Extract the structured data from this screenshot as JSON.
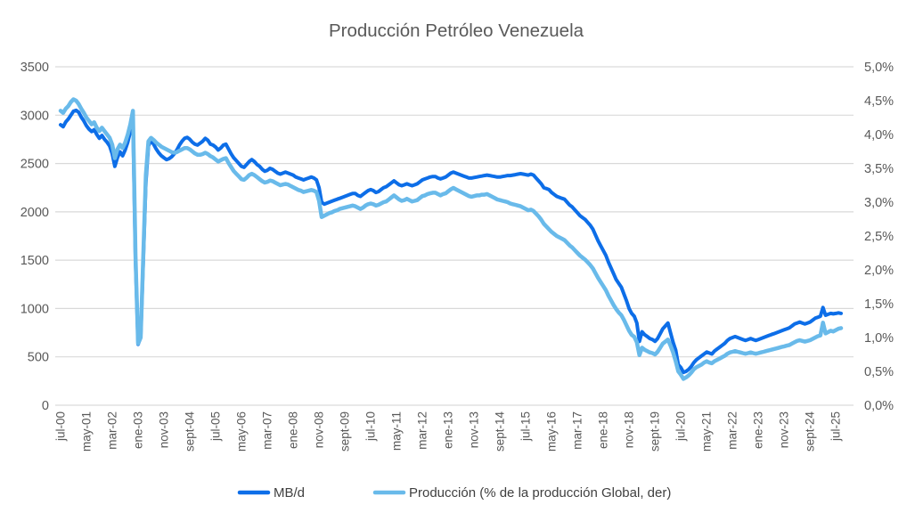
{
  "title": "Producción Petróleo Venezuela",
  "colors": {
    "series_dark_blue": "#0D6EE8",
    "series_light_blue": "#69BAEA",
    "grid": "#D9D9D9",
    "axis_text": "#595959",
    "title_text": "#595959",
    "legend_text": "#404040",
    "background": "#FFFFFF"
  },
  "chart_data": {
    "type": "line",
    "title": "Producción Petróleo Venezuela",
    "frequency": "monthly",
    "x_start": "jul-00",
    "x_end": "sept-25",
    "x_tick_every": 10,
    "x_tick_labels": [
      "jul-00",
      "may-01",
      "mar-02",
      "ene-03",
      "nov-03",
      "sept-04",
      "jul-05",
      "may-06",
      "mar-07",
      "ene-08",
      "nov-08",
      "sept-09",
      "jul-10",
      "may-11",
      "mar-12",
      "ene-13",
      "nov-13",
      "sept-14",
      "jul-15",
      "may-16",
      "mar-17",
      "ene-18",
      "nov-18",
      "sept-19",
      "jul-20",
      "may-21",
      "mar-22",
      "ene-23",
      "nov-23",
      "sept-24",
      "jul-25"
    ],
    "left_axis": {
      "min": 0,
      "max": 3500,
      "step": 500,
      "tick_labels": [
        "0",
        "500",
        "1000",
        "1500",
        "2000",
        "2500",
        "3000",
        "3500"
      ]
    },
    "right_axis": {
      "min": 0,
      "max": 5,
      "step": 0.5,
      "tick_labels": [
        "0,0%",
        "0,5%",
        "1,0%",
        "1,5%",
        "2,0%",
        "2,5%",
        "3,0%",
        "3,5%",
        "4,0%",
        "4,5%",
        "5,0%"
      ]
    },
    "grid": "horizontal",
    "legend_position": "bottom",
    "series": [
      {
        "name": "MB/d",
        "axis": "left",
        "color": "#0D6EE8",
        "values": [
          2900,
          2880,
          2930,
          2960,
          3000,
          3040,
          3050,
          3030,
          2980,
          2940,
          2890,
          2855,
          2830,
          2850,
          2800,
          2760,
          2790,
          2750,
          2720,
          2680,
          2600,
          2470,
          2560,
          2620,
          2580,
          2640,
          2720,
          2830,
          2950,
          1500,
          630,
          700,
          1500,
          2300,
          2680,
          2740,
          2700,
          2650,
          2610,
          2580,
          2560,
          2540,
          2550,
          2570,
          2600,
          2640,
          2690,
          2730,
          2760,
          2770,
          2750,
          2720,
          2700,
          2690,
          2710,
          2730,
          2760,
          2740,
          2700,
          2690,
          2670,
          2640,
          2660,
          2690,
          2700,
          2650,
          2600,
          2560,
          2530,
          2500,
          2470,
          2460,
          2490,
          2520,
          2540,
          2520,
          2490,
          2470,
          2440,
          2420,
          2430,
          2450,
          2440,
          2420,
          2400,
          2390,
          2400,
          2410,
          2400,
          2390,
          2380,
          2360,
          2350,
          2340,
          2330,
          2340,
          2350,
          2360,
          2350,
          2330,
          2250,
          2100,
          2080,
          2090,
          2100,
          2110,
          2120,
          2130,
          2140,
          2150,
          2160,
          2170,
          2180,
          2190,
          2190,
          2170,
          2160,
          2180,
          2200,
          2220,
          2230,
          2220,
          2200,
          2210,
          2230,
          2250,
          2260,
          2280,
          2300,
          2320,
          2300,
          2280,
          2270,
          2280,
          2290,
          2280,
          2270,
          2280,
          2290,
          2310,
          2330,
          2340,
          2350,
          2360,
          2365,
          2365,
          2350,
          2340,
          2350,
          2360,
          2380,
          2400,
          2410,
          2400,
          2390,
          2380,
          2370,
          2360,
          2350,
          2350,
          2355,
          2360,
          2365,
          2370,
          2375,
          2380,
          2375,
          2370,
          2365,
          2360,
          2360,
          2365,
          2370,
          2375,
          2375,
          2380,
          2385,
          2390,
          2395,
          2390,
          2385,
          2380,
          2390,
          2380,
          2350,
          2320,
          2290,
          2250,
          2240,
          2230,
          2200,
          2180,
          2160,
          2150,
          2140,
          2130,
          2100,
          2070,
          2050,
          2020,
          1990,
          1960,
          1940,
          1920,
          1890,
          1860,
          1820,
          1760,
          1700,
          1650,
          1600,
          1550,
          1480,
          1420,
          1360,
          1300,
          1260,
          1220,
          1150,
          1080,
          1000,
          950,
          920,
          850,
          660,
          760,
          730,
          710,
          690,
          680,
          660,
          690,
          740,
          790,
          820,
          850,
          750,
          650,
          570,
          420,
          390,
          340,
          350,
          370,
          400,
          440,
          470,
          490,
          510,
          530,
          550,
          540,
          530,
          560,
          580,
          600,
          620,
          640,
          670,
          690,
          700,
          710,
          700,
          690,
          680,
          670,
          680,
          690,
          680,
          670,
          680,
          690,
          700,
          710,
          720,
          730,
          740,
          750,
          760,
          770,
          780,
          790,
          800,
          820,
          840,
          850,
          860,
          850,
          840,
          850,
          860,
          880,
          900,
          910,
          920,
          1010,
          930,
          940,
          950,
          945,
          950,
          955,
          950
        ]
      },
      {
        "name": "Producción (% de la producción Global, der)",
        "axis": "right",
        "color": "#69BAEA",
        "values": [
          4.35,
          4.32,
          4.38,
          4.42,
          4.48,
          4.52,
          4.5,
          4.45,
          4.38,
          4.32,
          4.25,
          4.2,
          4.15,
          4.18,
          4.1,
          4.05,
          4.1,
          4.05,
          4.0,
          3.95,
          3.85,
          3.65,
          3.78,
          3.85,
          3.8,
          3.88,
          4.0,
          4.15,
          4.35,
          2.2,
          0.91,
          1.0,
          2.2,
          3.4,
          3.9,
          3.95,
          3.92,
          3.88,
          3.85,
          3.82,
          3.8,
          3.78,
          3.76,
          3.74,
          3.73,
          3.74,
          3.76,
          3.78,
          3.8,
          3.8,
          3.78,
          3.75,
          3.72,
          3.7,
          3.7,
          3.71,
          3.73,
          3.71,
          3.68,
          3.66,
          3.63,
          3.6,
          3.62,
          3.64,
          3.65,
          3.58,
          3.52,
          3.46,
          3.42,
          3.38,
          3.34,
          3.33,
          3.36,
          3.4,
          3.42,
          3.4,
          3.37,
          3.34,
          3.31,
          3.29,
          3.3,
          3.32,
          3.31,
          3.29,
          3.27,
          3.25,
          3.26,
          3.27,
          3.26,
          3.24,
          3.22,
          3.2,
          3.18,
          3.17,
          3.15,
          3.16,
          3.17,
          3.18,
          3.17,
          3.15,
          3.02,
          2.78,
          2.8,
          2.82,
          2.84,
          2.85,
          2.87,
          2.88,
          2.9,
          2.91,
          2.92,
          2.93,
          2.94,
          2.95,
          2.94,
          2.92,
          2.9,
          2.92,
          2.95,
          2.97,
          2.98,
          2.97,
          2.95,
          2.96,
          2.98,
          3.0,
          3.01,
          3.04,
          3.07,
          3.1,
          3.07,
          3.04,
          3.02,
          3.03,
          3.05,
          3.03,
          3.01,
          3.02,
          3.03,
          3.06,
          3.09,
          3.1,
          3.12,
          3.13,
          3.14,
          3.14,
          3.12,
          3.1,
          3.12,
          3.13,
          3.16,
          3.19,
          3.21,
          3.19,
          3.17,
          3.15,
          3.13,
          3.11,
          3.09,
          3.08,
          3.09,
          3.1,
          3.1,
          3.11,
          3.11,
          3.12,
          3.1,
          3.08,
          3.06,
          3.04,
          3.03,
          3.02,
          3.01,
          3.0,
          2.98,
          2.97,
          2.96,
          2.95,
          2.94,
          2.92,
          2.9,
          2.88,
          2.89,
          2.87,
          2.83,
          2.79,
          2.74,
          2.68,
          2.64,
          2.6,
          2.56,
          2.53,
          2.5,
          2.48,
          2.46,
          2.44,
          2.4,
          2.36,
          2.33,
          2.29,
          2.25,
          2.21,
          2.18,
          2.15,
          2.11,
          2.07,
          2.02,
          1.95,
          1.88,
          1.82,
          1.76,
          1.7,
          1.62,
          1.55,
          1.48,
          1.42,
          1.37,
          1.33,
          1.26,
          1.18,
          1.1,
          1.04,
          1.01,
          0.93,
          0.74,
          0.85,
          0.82,
          0.8,
          0.78,
          0.77,
          0.75,
          0.79,
          0.85,
          0.91,
          0.94,
          0.97,
          0.88,
          0.78,
          0.65,
          0.5,
          0.45,
          0.39,
          0.41,
          0.44,
          0.48,
          0.53,
          0.56,
          0.58,
          0.6,
          0.63,
          0.65,
          0.63,
          0.62,
          0.65,
          0.67,
          0.69,
          0.71,
          0.73,
          0.76,
          0.78,
          0.79,
          0.8,
          0.79,
          0.78,
          0.77,
          0.76,
          0.77,
          0.78,
          0.77,
          0.76,
          0.77,
          0.78,
          0.79,
          0.8,
          0.81,
          0.82,
          0.83,
          0.84,
          0.85,
          0.86,
          0.87,
          0.88,
          0.89,
          0.91,
          0.93,
          0.95,
          0.96,
          0.95,
          0.94,
          0.95,
          0.96,
          0.98,
          1.0,
          1.02,
          1.03,
          1.22,
          1.06,
          1.08,
          1.1,
          1.09,
          1.11,
          1.13,
          1.14
        ]
      }
    ]
  }
}
